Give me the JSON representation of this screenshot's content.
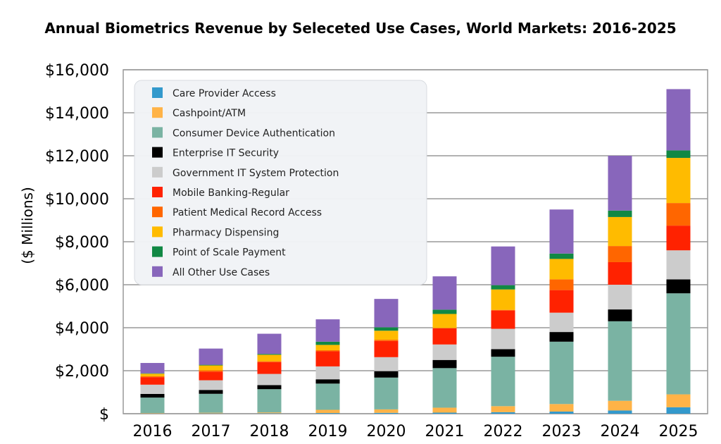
{
  "chart_data": {
    "type": "bar",
    "stacked": true,
    "title": "Annual Biometrics Revenue by Seleceted Use Cases, World Markets: 2016-2025",
    "ylabel": "($ Millions)",
    "xlabel": "",
    "ylim": [
      0,
      16000
    ],
    "yticks": [
      0,
      2000,
      4000,
      6000,
      8000,
      10000,
      12000,
      14000,
      16000
    ],
    "ytick_labels": [
      "$",
      "$2,000",
      "$4,000",
      "$6,000",
      "$8,000",
      "$10,000",
      "$12,000",
      "$14,000",
      "$16,000"
    ],
    "grid": true,
    "legend_position": "top-left",
    "categories": [
      "2016",
      "2017",
      "2018",
      "2019",
      "2020",
      "2021",
      "2022",
      "2023",
      "2024",
      "2025"
    ],
    "series": [
      {
        "name": "Care Provider Access",
        "color": "#3399cc",
        "values": [
          10,
          15,
          20,
          30,
          40,
          50,
          70,
          100,
          150,
          300
        ]
      },
      {
        "name": "Cashpoint/ATM",
        "color": "#ffb347",
        "values": [
          20,
          30,
          40,
          150,
          160,
          230,
          280,
          350,
          450,
          600
        ]
      },
      {
        "name": "Consumer Device Authentication",
        "color": "#7ab3a3",
        "values": [
          720,
          880,
          1080,
          1220,
          1480,
          1840,
          2300,
          2900,
          3700,
          4700
        ]
      },
      {
        "name": "Enterprise IT Security",
        "color": "#000000",
        "values": [
          170,
          180,
          190,
          200,
          300,
          380,
          350,
          450,
          550,
          650
        ]
      },
      {
        "name": "Government IT System Protection",
        "color": "#cccccc",
        "values": [
          430,
          450,
          520,
          600,
          650,
          720,
          950,
          900,
          1150,
          1350
        ]
      },
      {
        "name": "Mobile Banking-Regular",
        "color": "#ff2200",
        "values": [
          350,
          400,
          550,
          700,
          750,
          750,
          850,
          1050,
          1050,
          1150
        ]
      },
      {
        "name": "Patient Medical Record Access",
        "color": "#ff6600",
        "values": [
          40,
          60,
          40,
          50,
          60,
          20,
          30,
          500,
          750,
          1050
        ]
      },
      {
        "name": "Pharmacy Dispensing",
        "color": "#ffbb00",
        "values": [
          120,
          230,
          300,
          250,
          420,
          650,
          950,
          950,
          1350,
          2100
        ]
      },
      {
        "name": "Point of Scale Payment",
        "color": "#118844",
        "values": [
          20,
          30,
          40,
          150,
          160,
          200,
          200,
          250,
          300,
          350
        ]
      },
      {
        "name": "All Other Use Cases",
        "color": "#8866bb",
        "values": [
          480,
          755,
          940,
          1040,
          1320,
          1550,
          1800,
          2050,
          2550,
          2850
        ]
      }
    ]
  }
}
